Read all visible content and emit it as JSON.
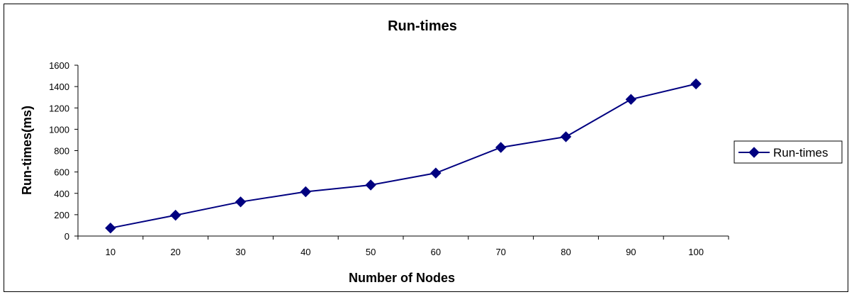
{
  "chart_data": {
    "type": "line",
    "title": "Run-times",
    "xlabel": "Number of Nodes",
    "ylabel": "Run-times(ms)",
    "categories": [
      "10",
      "20",
      "30",
      "40",
      "50",
      "60",
      "70",
      "80",
      "90",
      "100"
    ],
    "series": [
      {
        "name": "Run-times",
        "values": [
          75,
          195,
          320,
          415,
          478,
          590,
          830,
          930,
          1280,
          1425
        ]
      }
    ],
    "ylim": [
      0,
      1600
    ],
    "yticks": [
      "0",
      "200",
      "400",
      "600",
      "800",
      "1000",
      "1200",
      "1400",
      "1600"
    ],
    "grid": false,
    "legend": "right",
    "series_color": "#000080"
  }
}
